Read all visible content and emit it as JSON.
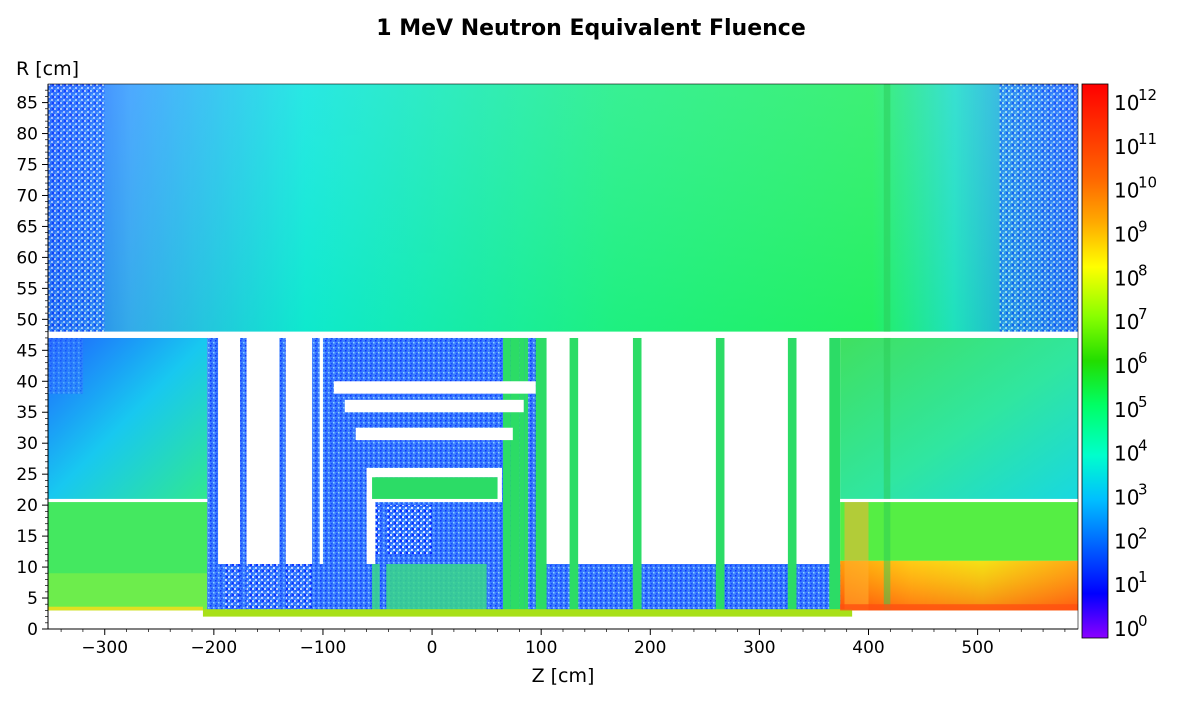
{
  "chart_data": {
    "type": "heatmap",
    "title": "1 MeV Neutron Equivalent Fluence",
    "xlabel": "Z [cm]",
    "ylabel": "R [cm]",
    "xlim": [
      -352,
      592
    ],
    "ylim": [
      0,
      88
    ],
    "x_ticks": [
      -300,
      -200,
      -100,
      0,
      100,
      200,
      300,
      400,
      500
    ],
    "x_tick_labels": [
      "−300",
      "−200",
      "−100",
      "0",
      "100",
      "200",
      "300",
      "400",
      "500"
    ],
    "y_ticks": [
      0,
      5,
      10,
      15,
      20,
      25,
      30,
      35,
      40,
      45,
      50,
      55,
      60,
      65,
      70,
      75,
      80,
      85
    ],
    "y_tick_labels": [
      "0",
      "5",
      "10",
      "15",
      "20",
      "25",
      "30",
      "35",
      "40",
      "45",
      "50",
      "55",
      "60",
      "65",
      "70",
      "75",
      "80",
      "85"
    ],
    "colorbar": {
      "scale": "log",
      "range": [
        1,
        1000000000000.0
      ],
      "labels": [
        {
          "base": "10",
          "exp": "0"
        },
        {
          "base": "10",
          "exp": "1"
        },
        {
          "base": "10",
          "exp": "2"
        },
        {
          "base": "10",
          "exp": "3"
        },
        {
          "base": "10",
          "exp": "4"
        },
        {
          "base": "10",
          "exp": "5"
        },
        {
          "base": "10",
          "exp": "6"
        },
        {
          "base": "10",
          "exp": "7"
        },
        {
          "base": "10",
          "exp": "8"
        },
        {
          "base": "10",
          "exp": "9"
        },
        {
          "base": "10",
          "exp": "10"
        },
        {
          "base": "10",
          "exp": "11"
        },
        {
          "base": "10",
          "exp": "12"
        }
      ],
      "colors": [
        "#8b00ff",
        "#0000ff",
        "#0066ff",
        "#00bfff",
        "#00ffcc",
        "#00ff66",
        "#22dd00",
        "#88ff00",
        "#ffff00",
        "#ffaa00",
        "#ff5500",
        "#ff0000"
      ]
    },
    "regions": [
      {
        "name": "outer-region",
        "z": [
          -352,
          592
        ],
        "r": [
          48,
          88
        ],
        "log_fluence": 5.6
      },
      {
        "name": "left-mid",
        "z": [
          -352,
          -206
        ],
        "r": [
          21,
          47
        ],
        "log_fluence": 4.4
      },
      {
        "name": "left-inner",
        "z": [
          -352,
          -206
        ],
        "r": [
          3,
          20
        ],
        "log_fluence": 6.3
      },
      {
        "name": "right-mid",
        "z": [
          374,
          592
        ],
        "r": [
          21,
          47
        ],
        "log_fluence": 6.2
      },
      {
        "name": "right-inner",
        "z": [
          374,
          592
        ],
        "r": [
          3,
          20
        ],
        "log_fluence": 7.0
      },
      {
        "name": "right-hot-core",
        "z": [
          380,
          592
        ],
        "r": [
          3,
          11
        ],
        "log_fluence": 10.3
      },
      {
        "name": "central-detector",
        "z": [
          -206,
          374
        ],
        "r": [
          2.5,
          10.5
        ],
        "log_fluence": 4.0
      },
      {
        "name": "central-rings",
        "z": [
          -100,
          105
        ],
        "r": [
          10.5,
          47
        ],
        "log_fluence": 3.6
      },
      {
        "name": "beam-pipe",
        "z": [
          -210,
          385
        ],
        "r": [
          2,
          3.5
        ],
        "log_fluence": 8.0
      }
    ]
  }
}
